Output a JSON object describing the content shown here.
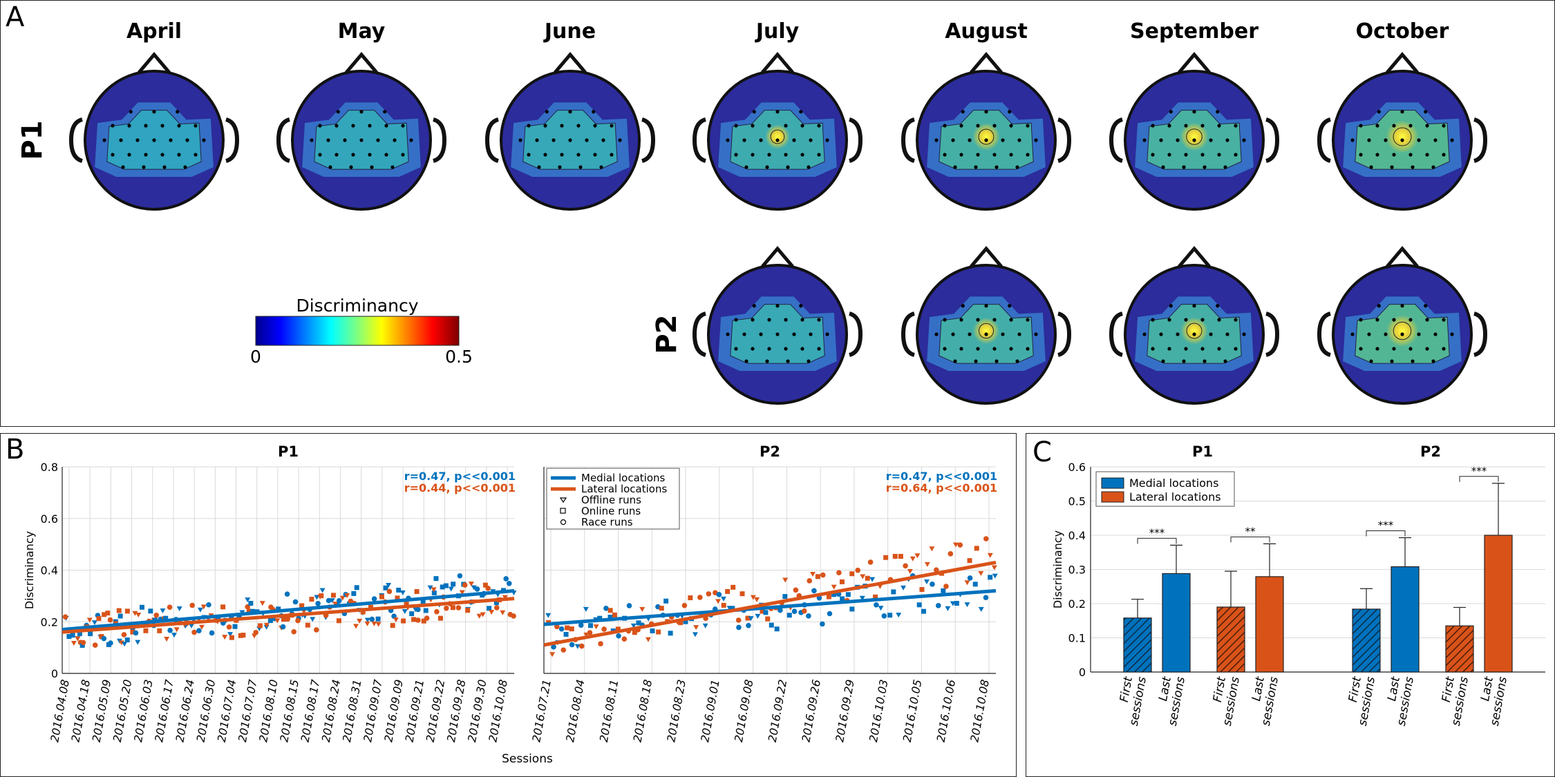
{
  "panels": {
    "a": "A",
    "b": "B",
    "c": "C"
  },
  "colors": {
    "medial": "#0072BD",
    "lateral": "#D95319",
    "head_bg": "#2c2c9c",
    "grid": "#d9d9d9"
  },
  "topo": {
    "months": [
      "April",
      "May",
      "June",
      "July",
      "August",
      "September",
      "October"
    ],
    "rows": [
      {
        "label": "P1",
        "months": [
          "April",
          "May",
          "June",
          "July",
          "August",
          "September",
          "October"
        ],
        "intensity": [
          0.2,
          0.25,
          0.28,
          0.36,
          0.45,
          0.48,
          0.62
        ]
      },
      {
        "label": "P2",
        "months": [
          "July",
          "August",
          "September",
          "October"
        ],
        "intensity": [
          0.3,
          0.42,
          0.45,
          0.6
        ]
      }
    ],
    "colorbar": {
      "title": "Discriminancy",
      "min_label": "0",
      "max_label": "0.5",
      "range": [
        0,
        0.5
      ]
    }
  },
  "chart_data": [
    {
      "type": "scatter",
      "title": "P1",
      "xlabel": "Sessions",
      "ylabel": "Discriminancy",
      "ylim": [
        0,
        0.8
      ],
      "yticks": [
        "0",
        "0.2",
        "0.4",
        "0.6",
        "0.8"
      ],
      "grid": true,
      "dates": [
        "2016.04.08",
        "2016.04.18",
        "2016.05.09",
        "2016.05.20",
        "2016.06.03",
        "2016.06.17",
        "2016.06.24",
        "2016.06.30",
        "2016.07.04",
        "2016.07.07",
        "2016.08.10",
        "2016.08.15",
        "2016.08.17",
        "2016.08.24",
        "2016.08.31",
        "2016.09.07",
        "2016.09.09",
        "2016.09.21",
        "2016.09.22",
        "2016.09.28",
        "2016.09.30",
        "2016.10.08"
      ],
      "annotations": [
        {
          "text": "r=0.47, p<<0.001",
          "series": "medial"
        },
        {
          "text": "r=0.44, p<<0.001",
          "series": "lateral"
        }
      ],
      "trend": {
        "medial": [
          0.17,
          0.32
        ],
        "lateral": [
          0.16,
          0.29
        ]
      },
      "scatter_stats": {
        "medial_start": 0.16,
        "medial_end": 0.33,
        "lateral_start": 0.16,
        "lateral_end": 0.29,
        "spread": 0.07
      }
    },
    {
      "type": "scatter",
      "title": "P2",
      "ylim": [
        0,
        0.8
      ],
      "grid": true,
      "dates": [
        "2016.07.21",
        "2016.08.04",
        "2016.08.11",
        "2016.08.18",
        "2016.08.23",
        "2016.09.01",
        "2016.09.08",
        "2016.09.22",
        "2016.09.26",
        "2016.09.29",
        "2016.10.03",
        "2016.10.05",
        "2016.10.06",
        "2016.10.08"
      ],
      "annotations": [
        {
          "text": "r=0.47, p<<0.001",
          "series": "medial"
        },
        {
          "text": "r=0.64, p<<0.001",
          "series": "lateral"
        }
      ],
      "legend": {
        "position": "top-left",
        "items": [
          {
            "label": "Medial locations",
            "kind": "line",
            "series": "medial"
          },
          {
            "label": "Lateral locations",
            "kind": "line",
            "series": "lateral"
          },
          {
            "label": "Offline runs",
            "kind": "triangle"
          },
          {
            "label": "Online runs",
            "kind": "square"
          },
          {
            "label": "Race runs",
            "kind": "circle"
          }
        ]
      },
      "trend": {
        "medial": [
          0.19,
          0.32
        ],
        "lateral": [
          0.11,
          0.43
        ]
      },
      "scatter_stats": {
        "medial_start": 0.17,
        "medial_end": 0.33,
        "lateral_start": 0.12,
        "lateral_end": 0.45,
        "spread": 0.08
      }
    },
    {
      "type": "bar",
      "groups": [
        {
          "title": "P1",
          "bars": [
            {
              "series": "medial",
              "label": [
                "First",
                "sessions"
              ],
              "value": 0.158,
              "err": 0.055,
              "hatched": true
            },
            {
              "series": "medial",
              "label": [
                "Last",
                "sessions"
              ],
              "value": 0.288,
              "err": 0.083,
              "hatched": false
            },
            {
              "series": "lateral",
              "label": [
                "First",
                "sessions"
              ],
              "value": 0.19,
              "err": 0.105,
              "hatched": true
            },
            {
              "series": "lateral",
              "label": [
                "Last",
                "sessions"
              ],
              "value": 0.279,
              "err": 0.096,
              "hatched": false
            }
          ],
          "significance": [
            {
              "pair": [
                0,
                1
              ],
              "text": "***"
            },
            {
              "pair": [
                2,
                3
              ],
              "text": "**"
            }
          ]
        },
        {
          "title": "P2",
          "bars": [
            {
              "series": "medial",
              "label": [
                "First",
                "sessions"
              ],
              "value": 0.184,
              "err": 0.06,
              "hatched": true
            },
            {
              "series": "medial",
              "label": [
                "Last",
                "sessions"
              ],
              "value": 0.308,
              "err": 0.085,
              "hatched": false
            },
            {
              "series": "lateral",
              "label": [
                "First",
                "sessions"
              ],
              "value": 0.135,
              "err": 0.054,
              "hatched": true
            },
            {
              "series": "lateral",
              "label": [
                "Last",
                "sessions"
              ],
              "value": 0.4,
              "err": 0.152,
              "hatched": false
            }
          ],
          "significance": [
            {
              "pair": [
                0,
                1
              ],
              "text": "***"
            },
            {
              "pair": [
                2,
                3
              ],
              "text": "***"
            }
          ]
        }
      ],
      "ylabel": "Discriminancy",
      "ylim": [
        0,
        0.6
      ],
      "yticks": [
        "0",
        "0.1",
        "0.2",
        "0.3",
        "0.4",
        "0.5",
        "0.6"
      ],
      "grid": true,
      "legend": {
        "position": "top-left",
        "items": [
          {
            "label": "Medial locations",
            "series": "medial"
          },
          {
            "label": "Lateral locations",
            "series": "lateral"
          }
        ]
      }
    }
  ]
}
